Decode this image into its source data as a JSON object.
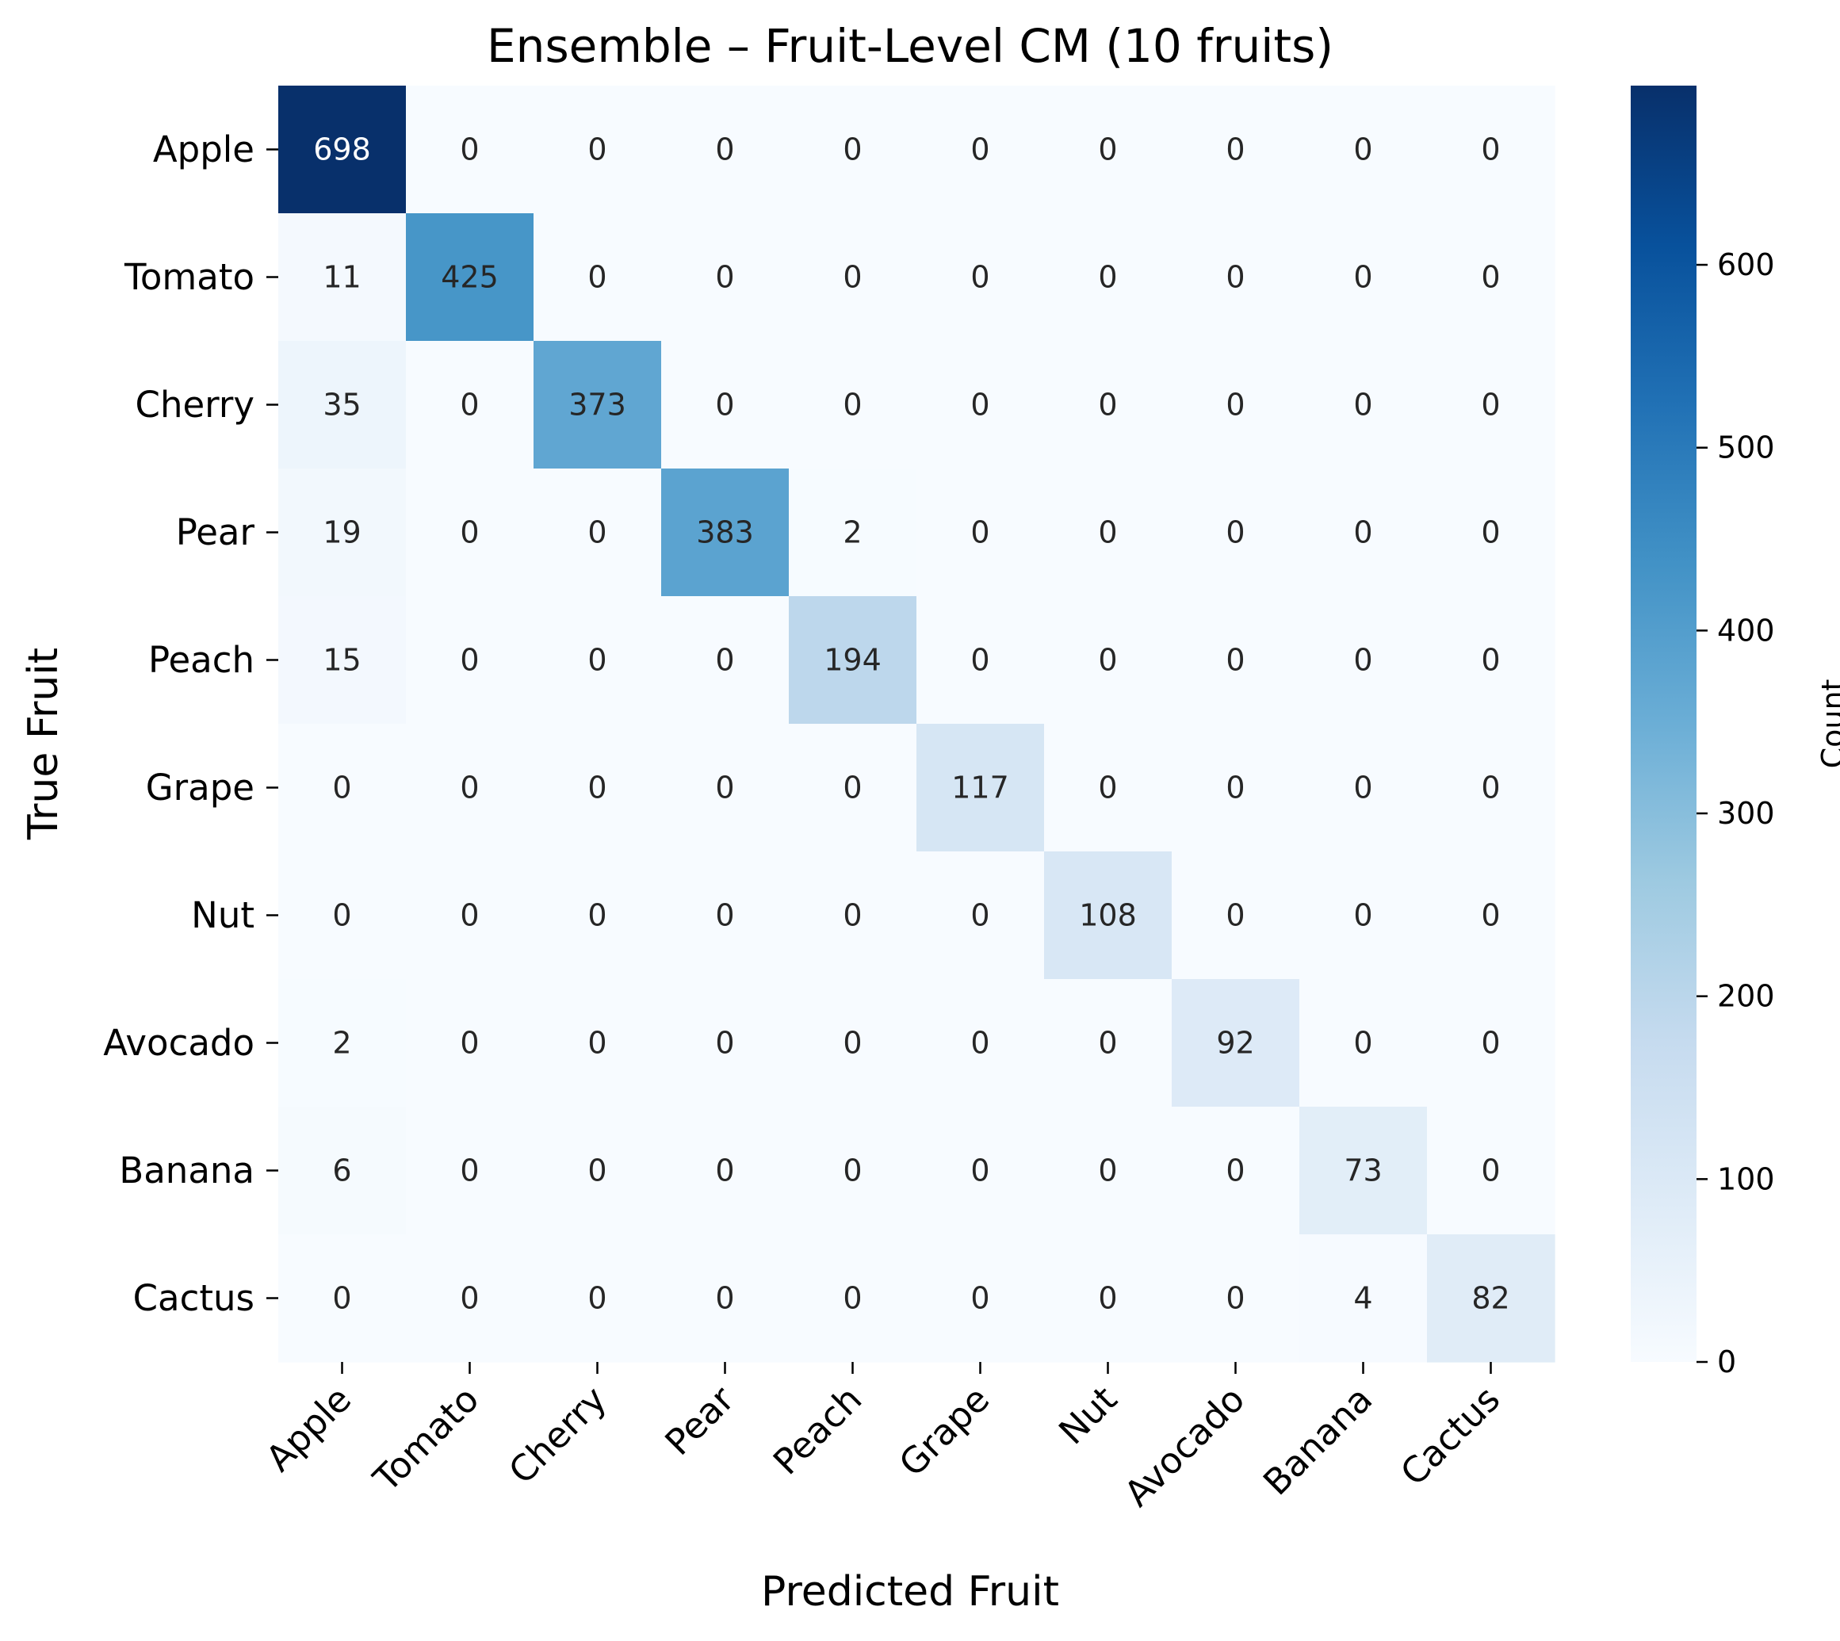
{
  "chart_data": {
    "type": "heatmap",
    "title": "Ensemble – Fruit-Level CM (10 fruits)",
    "xlabel": "Predicted Fruit",
    "ylabel": "True Fruit",
    "x_categories": [
      "Apple",
      "Tomato",
      "Cherry",
      "Pear",
      "Peach",
      "Grape",
      "Nut",
      "Avocado",
      "Banana",
      "Cactus"
    ],
    "y_categories": [
      "Apple",
      "Tomato",
      "Cherry",
      "Pear",
      "Peach",
      "Grape",
      "Nut",
      "Avocado",
      "Banana",
      "Cactus"
    ],
    "matrix": [
      [
        698,
        0,
        0,
        0,
        0,
        0,
        0,
        0,
        0,
        0
      ],
      [
        11,
        425,
        0,
        0,
        0,
        0,
        0,
        0,
        0,
        0
      ],
      [
        35,
        0,
        373,
        0,
        0,
        0,
        0,
        0,
        0,
        0
      ],
      [
        19,
        0,
        0,
        383,
        2,
        0,
        0,
        0,
        0,
        0
      ],
      [
        15,
        0,
        0,
        0,
        194,
        0,
        0,
        0,
        0,
        0
      ],
      [
        0,
        0,
        0,
        0,
        0,
        117,
        0,
        0,
        0,
        0
      ],
      [
        0,
        0,
        0,
        0,
        0,
        0,
        108,
        0,
        0,
        0
      ],
      [
        2,
        0,
        0,
        0,
        0,
        0,
        0,
        92,
        0,
        0
      ],
      [
        6,
        0,
        0,
        0,
        0,
        0,
        0,
        0,
        73,
        0
      ],
      [
        0,
        0,
        0,
        0,
        0,
        0,
        0,
        0,
        4,
        82
      ]
    ],
    "colorbar": {
      "label": "Count",
      "range": [
        0,
        698
      ],
      "ticks": [
        0,
        100,
        200,
        300,
        400,
        500,
        600
      ]
    },
    "colormap": "Blues",
    "colormap_stops": [
      "#f7fbff",
      "#deebf7",
      "#c6dbef",
      "#9ecae1",
      "#6baed6",
      "#4292c6",
      "#2171b5",
      "#08519c",
      "#08306b"
    ],
    "text_color_dark": "#262626",
    "text_color_light": "#ffffff"
  }
}
